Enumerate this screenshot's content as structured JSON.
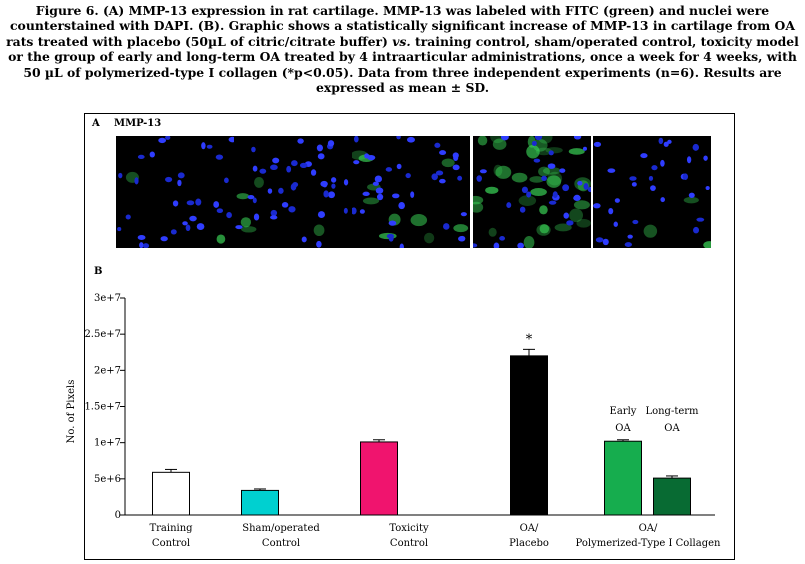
{
  "caption": {
    "part1": "Figure 6. (A) MMP-13 expression in rat cartilage. MMP-13 was labeled with FITC (green) and nuclei were counterstained with DAPI. (B). Graphic shows a statistically significant increase of MMP-13 in cartilage from OA rats treated with placebo (50µL of citric/citrate buffer) ",
    "italic": "vs.",
    "part2": " training control, sham/operated control, toxicity model or the group of early and long-term OA treated by 4 intraarticular administrations, once a week for 4 weeks, with 50 µL of polymerized-type I collagen (*p<0.05). Data from three independent experiments (n=6). Results are expressed as mean ± SD."
  },
  "panel_a": {
    "label": "A",
    "title": "MMP-13",
    "images": [
      {
        "green_level": 0.05
      },
      {
        "green_level": 0.12
      },
      {
        "green_level": 0.25
      },
      {
        "green_level": 0.85
      },
      {
        "green_level": 0.08
      }
    ]
  },
  "panel_b": {
    "label": "B"
  },
  "chart_data": {
    "type": "bar",
    "ylabel": "No. of Pixels",
    "ylim": [
      0,
      30000000
    ],
    "yticks": [
      0,
      5000000,
      10000000,
      15000000,
      20000000,
      25000000,
      30000000
    ],
    "ytick_labels": [
      "0",
      "5e+6",
      "1e+7",
      "1.5e+7",
      "2e+7",
      "2.5e+7",
      "3e+7"
    ],
    "bars": [
      {
        "value": 5900000,
        "error": 400000,
        "color": "#ffffff",
        "label": ""
      },
      {
        "value": 3400000,
        "error": 200000,
        "color": "#00d0d0",
        "label": ""
      },
      {
        "value": 10100000,
        "error": 300000,
        "color": "#f0146e",
        "label": ""
      },
      {
        "value": 22000000,
        "error": 900000,
        "color": "#000000",
        "label": "*"
      },
      {
        "value": 10200000,
        "error": 200000,
        "color": "#16ad4e",
        "label": "Early\nOA"
      },
      {
        "value": 5100000,
        "error": 300000,
        "color": "#086b33",
        "label": "Long-term\nOA"
      }
    ],
    "category_labels": [
      "Training\nControl",
      "Sham/operated\nControl",
      "Toxicity\nControl",
      "OA/\nPlacebo",
      "OA/\nPolymerized-Type I Collagen"
    ]
  }
}
